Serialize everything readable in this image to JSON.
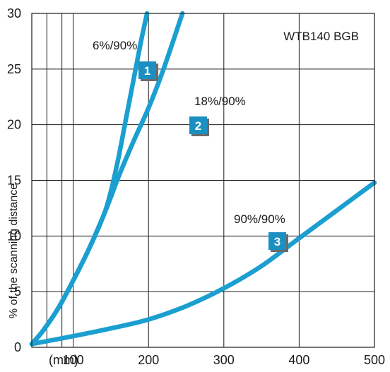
{
  "chart_data": {
    "type": "line",
    "title": "WTB140 BGB",
    "xlabel": "(mm)",
    "ylabel": "% of the scanning distance",
    "xlim": [
      45,
      500
    ],
    "ylim": [
      0,
      30
    ],
    "x_ticks": [
      100,
      200,
      300,
      400,
      500
    ],
    "y_ticks": [
      0,
      5,
      10,
      15,
      20,
      25,
      30
    ],
    "grid": true,
    "line_color": "#1a9fd0",
    "badge_color": "#1a8fc0",
    "series": [
      {
        "name": "6%/90%",
        "badge": "1",
        "x": [
          45,
          60,
          80,
          100,
          120,
          140,
          150,
          160,
          170,
          180,
          190,
          198
        ],
        "y": [
          0.3,
          1.5,
          3.5,
          6.0,
          8.7,
          11.8,
          14.0,
          17.0,
          20.5,
          24.0,
          27.5,
          30.0
        ]
      },
      {
        "name": "18%/90%",
        "badge": "2",
        "x": [
          45,
          60,
          80,
          100,
          120,
          140,
          150,
          160,
          180,
          200,
          220,
          245
        ],
        "y": [
          0.3,
          1.5,
          3.5,
          6.0,
          8.7,
          11.8,
          13.5,
          15.3,
          18.5,
          21.5,
          25.0,
          30.0
        ]
      },
      {
        "name": "90%/90%",
        "badge": "3",
        "x": [
          45,
          100,
          150,
          200,
          250,
          300,
          350,
          400,
          450,
          500
        ],
        "y": [
          0.3,
          1.0,
          1.7,
          2.5,
          3.7,
          5.3,
          7.3,
          9.8,
          12.3,
          14.8
        ]
      }
    ]
  }
}
